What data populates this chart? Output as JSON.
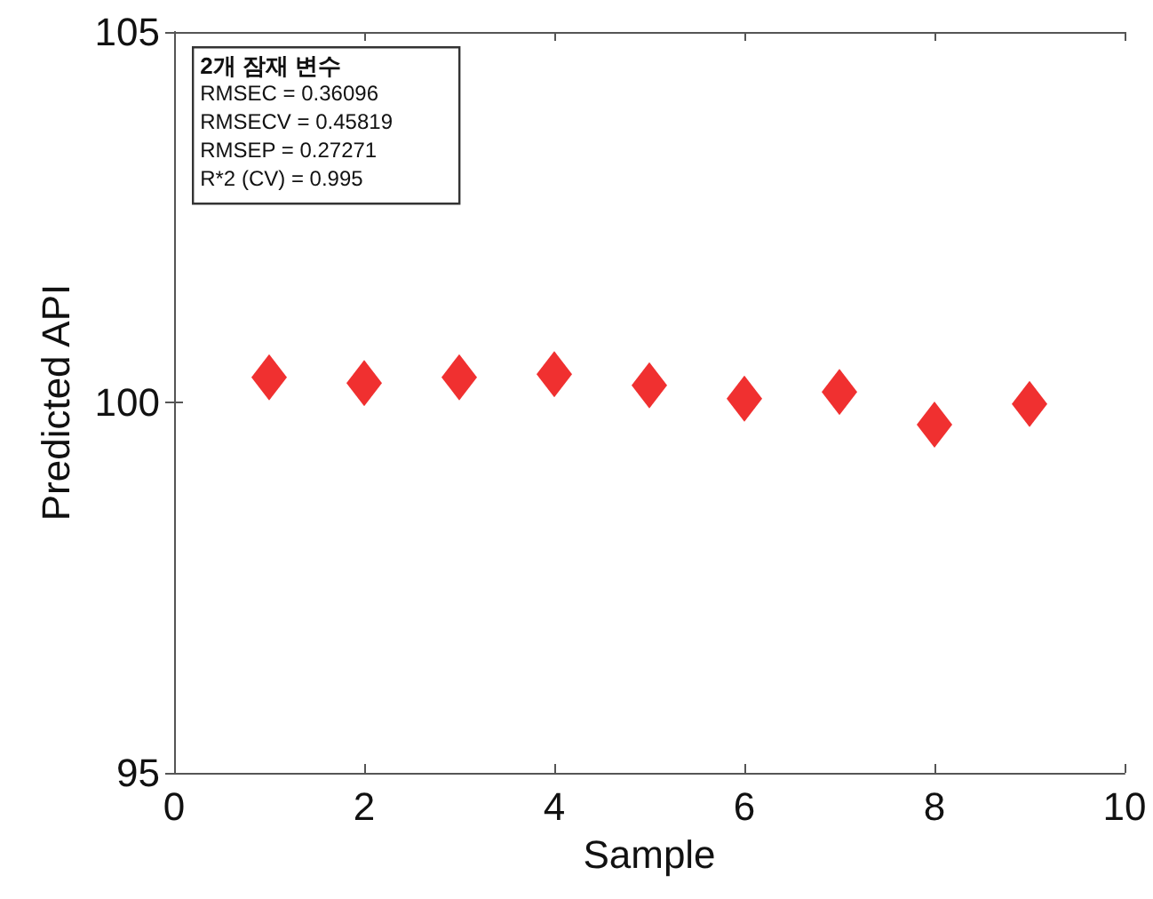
{
  "chart_data": {
    "type": "scatter",
    "xlabel": "Sample",
    "ylabel": "Predicted API",
    "x": [
      1,
      2,
      3,
      4,
      5,
      6,
      7,
      8,
      9
    ],
    "series": [
      {
        "color": "#f03030",
        "values": [
          100.34,
          100.26,
          100.34,
          100.38,
          100.23,
          100.05,
          100.14,
          99.7,
          99.98
        ]
      }
    ],
    "marker": "diamond",
    "xlim": [
      0,
      10
    ],
    "xticks": [
      0,
      2,
      4,
      6,
      8,
      10
    ],
    "ylim": [
      95,
      105
    ],
    "yticks": [
      95,
      100,
      105
    ],
    "grid": false,
    "annotations": [
      "2개 잠재 변수",
      "RMSEC = 0.36096",
      "RMSECV = 0.45819",
      "RMSEP = 0.27271",
      "R*2 (CV) = 0.995"
    ]
  }
}
